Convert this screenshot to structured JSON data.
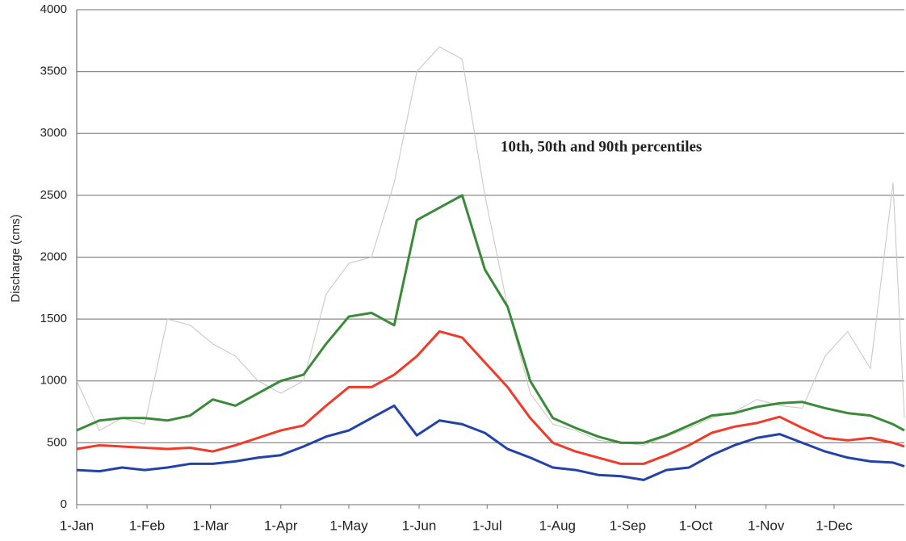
{
  "chart_data": {
    "type": "line",
    "ylabel": "Discharge (cms)",
    "annotation": "10th, 50th and 90th percentiles",
    "x": [
      0,
      10,
      20,
      30,
      40,
      50,
      60,
      70,
      80,
      90,
      100,
      110,
      120,
      130,
      140,
      150,
      160,
      170,
      180,
      190,
      200,
      210,
      220,
      230,
      240,
      250,
      260,
      270,
      280,
      290,
      300,
      310,
      320,
      330,
      340,
      350,
      360,
      365
    ],
    "xlim": [
      0,
      365
    ],
    "xticks": [
      {
        "value": 0,
        "label": "1-Jan"
      },
      {
        "value": 31,
        "label": "1-Feb"
      },
      {
        "value": 59,
        "label": "1-Mar"
      },
      {
        "value": 90,
        "label": "1-Apr"
      },
      {
        "value": 120,
        "label": "1-May"
      },
      {
        "value": 151,
        "label": "1-Jun"
      },
      {
        "value": 181,
        "label": "1-Jul"
      },
      {
        "value": 212,
        "label": "1-Aug"
      },
      {
        "value": 243,
        "label": "1-Sep"
      },
      {
        "value": 273,
        "label": "1-Oct"
      },
      {
        "value": 304,
        "label": "1-Nov"
      },
      {
        "value": 334,
        "label": "1-Dec"
      }
    ],
    "ylim": [
      0,
      4000
    ],
    "yticks": [
      0,
      500,
      1000,
      1500,
      2000,
      2500,
      3000,
      3500,
      4000
    ],
    "grid": true,
    "series": [
      {
        "color": "#c8c4c0",
        "width": 1,
        "values": [
          1000,
          600,
          700,
          650,
          1500,
          1450,
          1300,
          1200,
          1000,
          900,
          1000,
          1700,
          1950,
          2000,
          2600,
          3500,
          3700,
          3600,
          2500,
          1600,
          900,
          650,
          600,
          520,
          500,
          480,
          550,
          620,
          700,
          750,
          850,
          800,
          780,
          1200,
          1400,
          1100,
          2600,
          700
        ]
      },
      {
        "color": "#3a8a3a",
        "width": 3,
        "values": [
          600,
          680,
          700,
          700,
          680,
          720,
          850,
          800,
          900,
          1000,
          1050,
          1300,
          1520,
          1550,
          1450,
          2300,
          2400,
          2500,
          1900,
          1600,
          1000,
          700,
          620,
          550,
          500,
          500,
          560,
          640,
          720,
          740,
          790,
          820,
          830,
          780,
          740,
          720,
          650,
          600
        ]
      },
      {
        "color": "#f03a2a",
        "width": 3,
        "values": [
          450,
          480,
          470,
          460,
          450,
          460,
          430,
          480,
          540,
          600,
          640,
          800,
          950,
          950,
          1050,
          1200,
          1400,
          1350,
          1150,
          950,
          700,
          500,
          430,
          380,
          330,
          330,
          400,
          480,
          580,
          630,
          660,
          710,
          620,
          540,
          520,
          540,
          500,
          470
        ]
      },
      {
        "color": "#2242a8",
        "width": 3,
        "values": [
          280,
          270,
          300,
          280,
          300,
          330,
          330,
          350,
          380,
          400,
          470,
          550,
          600,
          700,
          800,
          560,
          680,
          650,
          580,
          450,
          380,
          300,
          280,
          240,
          230,
          200,
          280,
          300,
          400,
          480,
          540,
          570,
          500,
          430,
          380,
          350,
          340,
          310
        ]
      }
    ]
  }
}
